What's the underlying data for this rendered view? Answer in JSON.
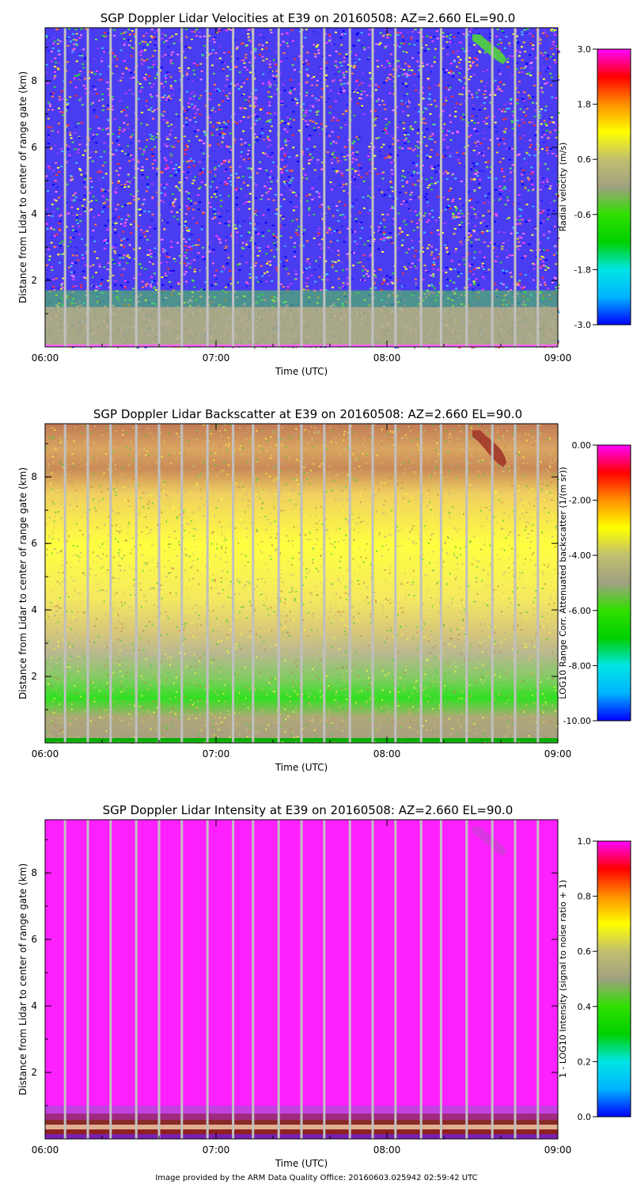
{
  "chart_data": [
    {
      "type": "heatmap",
      "title": "SGP Doppler Lidar Velocities at E39 on 20160508: AZ=2.660 EL=90.0",
      "xlabel": "Time (UTC)",
      "ylabel": "Distance from Lidar to center of range gate (km)",
      "x_ticks": [
        "06:00",
        "07:00",
        "08:00",
        "09:00"
      ],
      "x_range": [
        "06:00",
        "09:00"
      ],
      "y_ticks": [
        "2",
        "4",
        "6",
        "8"
      ],
      "y_range": [
        0,
        9.6
      ],
      "colorbar": {
        "label": "Radial velocity (m/s)",
        "ticks": [
          "3.0",
          "1.8",
          "0.6",
          "-0.6",
          "-1.8",
          "-3.0"
        ],
        "range": [
          -3.0,
          3.0
        ]
      },
      "features": {
        "noise_above_km": 1.5,
        "low_level_layer_top_km": 1.2,
        "green_band_km": [
          1.2,
          1.7
        ],
        "plume": {
          "start": "08:30",
          "end": "08:42",
          "top_km": 9.4,
          "bottom_km": 8.5,
          "color": "#4fd43a"
        }
      },
      "gaps_utc": [
        "06:07",
        "06:15",
        "06:23",
        "06:32",
        "06:40",
        "06:48",
        "06:57",
        "07:06",
        "07:13",
        "07:22",
        "07:30",
        "07:38",
        "07:47",
        "07:55",
        "08:03",
        "08:12",
        "08:19",
        "08:28",
        "08:37",
        "08:45",
        "08:53"
      ]
    },
    {
      "type": "heatmap",
      "title": "SGP Doppler Lidar Backscatter at E39 on 20160508: AZ=2.660 EL=90.0",
      "xlabel": "Time (UTC)",
      "ylabel": "Distance from Lidar to center of range gate (km)",
      "x_ticks": [
        "06:00",
        "07:00",
        "08:00",
        "09:00"
      ],
      "x_range": [
        "06:00",
        "09:00"
      ],
      "y_ticks": [
        "2",
        "4",
        "6",
        "8"
      ],
      "y_range": [
        0,
        9.6
      ],
      "colorbar": {
        "label": "LOG10 Range Corr. Attenuated backscatter (1/(m sr))",
        "ticks": [
          "0.00",
          "-2.00",
          "-4.00",
          "-6.00",
          "-8.00",
          "-10.00"
        ],
        "range": [
          -10,
          0
        ]
      },
      "features": {
        "plume": {
          "start": "08:30",
          "end": "08:42",
          "top_km": 9.4,
          "bottom_km": 8.3,
          "color": "#a3372a"
        }
      },
      "gaps_utc": [
        "06:07",
        "06:15",
        "06:23",
        "06:32",
        "06:40",
        "06:48",
        "06:57",
        "07:06",
        "07:13",
        "07:22",
        "07:30",
        "07:38",
        "07:47",
        "07:55",
        "08:03",
        "08:12",
        "08:19",
        "08:28",
        "08:37",
        "08:45",
        "08:53"
      ]
    },
    {
      "type": "heatmap",
      "title": "SGP Doppler Lidar Intensity at E39 on 20160508: AZ=2.660 EL=90.0",
      "xlabel": "Time (UTC)",
      "ylabel": "Distance from Lidar to center of range gate (km)",
      "x_ticks": [
        "06:00",
        "07:00",
        "08:00",
        "09:00"
      ],
      "x_range": [
        "06:00",
        "09:00"
      ],
      "y_ticks": [
        "2",
        "4",
        "6",
        "8"
      ],
      "y_range": [
        0,
        9.6
      ],
      "colorbar": {
        "label": "1 - LOG10 Intensity (signal to noise ratio + 1)",
        "ticks": [
          "1.0",
          "0.8",
          "0.6",
          "0.4",
          "0.2",
          "0.0"
        ],
        "range": [
          0,
          1
        ]
      },
      "features": {
        "low_layer_km": [
          0.1,
          1.0
        ],
        "plume": {
          "start": "08:30",
          "end": "08:42",
          "top_km": 9.4,
          "bottom_km": 8.5,
          "color": "#d43adb"
        }
      },
      "gaps_utc": [
        "06:07",
        "06:15",
        "06:23",
        "06:32",
        "06:40",
        "06:48",
        "06:57",
        "07:06",
        "07:13",
        "07:22",
        "07:30",
        "07:38",
        "07:47",
        "07:55",
        "08:03",
        "08:12",
        "08:19",
        "08:28",
        "08:37",
        "08:45",
        "08:53"
      ]
    }
  ],
  "footer": "Image provided by the ARM Data Quality Office: 20160603.025942 02:59:42 UTC",
  "colors": {
    "rainbow": [
      "#0000ff",
      "#00b4ff",
      "#00e5e5",
      "#00d000",
      "#30e000",
      "#a0a080",
      "#c0c070",
      "#ffff00",
      "#ff9000",
      "#ff0000",
      "#ff00ff"
    ],
    "gap": "#c0c0c0"
  }
}
